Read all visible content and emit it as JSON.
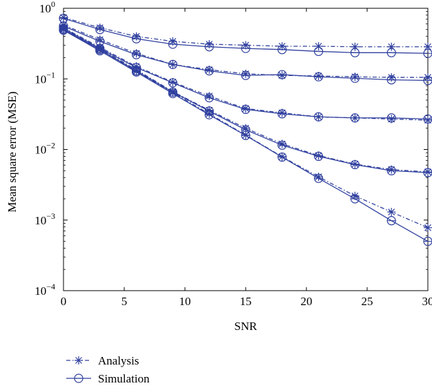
{
  "chart_data": {
    "type": "line",
    "title": "",
    "xlabel": "SNR",
    "ylabel": "Mean square error (MSE)",
    "xlim": [
      0,
      30
    ],
    "ylim": [
      0.0001,
      1
    ],
    "yscale": "log",
    "x": [
      0,
      3,
      6,
      9,
      12,
      15,
      18,
      21,
      24,
      27,
      30
    ],
    "xticks": [
      "0",
      "5",
      "10",
      "15",
      "20",
      "25",
      "30"
    ],
    "yticks": [
      {
        "base": "10",
        "exp": "−4"
      },
      {
        "base": "10",
        "exp": "−3"
      },
      {
        "base": "10",
        "exp": "−2"
      },
      {
        "base": "10",
        "exp": "−1"
      },
      {
        "base": "10",
        "exp": "0"
      }
    ],
    "grid": false,
    "legend_position": "below",
    "color": "#2f3f9e",
    "series": [
      {
        "group": 1,
        "name": "Analysis",
        "values": [
          0.74,
          0.53,
          0.4,
          0.34,
          0.31,
          0.3,
          0.29,
          0.29,
          0.285,
          0.285,
          0.285
        ]
      },
      {
        "group": 1,
        "name": "Simulation",
        "values": [
          0.72,
          0.5,
          0.37,
          0.31,
          0.285,
          0.27,
          0.26,
          0.245,
          0.235,
          0.235,
          0.23
        ]
      },
      {
        "group": 2,
        "name": "Analysis",
        "values": [
          0.58,
          0.36,
          0.23,
          0.16,
          0.135,
          0.118,
          0.112,
          0.11,
          0.107,
          0.105,
          0.105
        ]
      },
      {
        "group": 2,
        "name": "Simulation",
        "values": [
          0.56,
          0.34,
          0.22,
          0.16,
          0.13,
          0.112,
          0.115,
          0.107,
          0.102,
          0.097,
          0.095
        ]
      },
      {
        "group": 3,
        "name": "Analysis",
        "values": [
          0.53,
          0.28,
          0.15,
          0.09,
          0.057,
          0.038,
          0.033,
          0.029,
          0.028,
          0.027,
          0.026
        ]
      },
      {
        "group": 3,
        "name": "Simulation",
        "values": [
          0.52,
          0.27,
          0.145,
          0.088,
          0.054,
          0.037,
          0.032,
          0.029,
          0.028,
          0.028,
          0.027
        ]
      },
      {
        "group": 4,
        "name": "Analysis",
        "values": [
          0.51,
          0.265,
          0.135,
          0.066,
          0.036,
          0.02,
          0.012,
          0.0082,
          0.0062,
          0.0052,
          0.0048
        ]
      },
      {
        "group": 4,
        "name": "Simulation",
        "values": [
          0.5,
          0.26,
          0.13,
          0.065,
          0.035,
          0.019,
          0.0115,
          0.008,
          0.0061,
          0.005,
          0.0047
        ]
      },
      {
        "group": 5,
        "name": "Analysis",
        "values": [
          0.5,
          0.26,
          0.128,
          0.064,
          0.032,
          0.016,
          0.0079,
          0.0041,
          0.0022,
          0.0013,
          0.00078
        ]
      },
      {
        "group": 5,
        "name": "Simulation",
        "values": [
          0.49,
          0.25,
          0.125,
          0.062,
          0.031,
          0.0158,
          0.0078,
          0.0039,
          0.002,
          0.00098,
          0.0005
        ]
      }
    ]
  }
}
